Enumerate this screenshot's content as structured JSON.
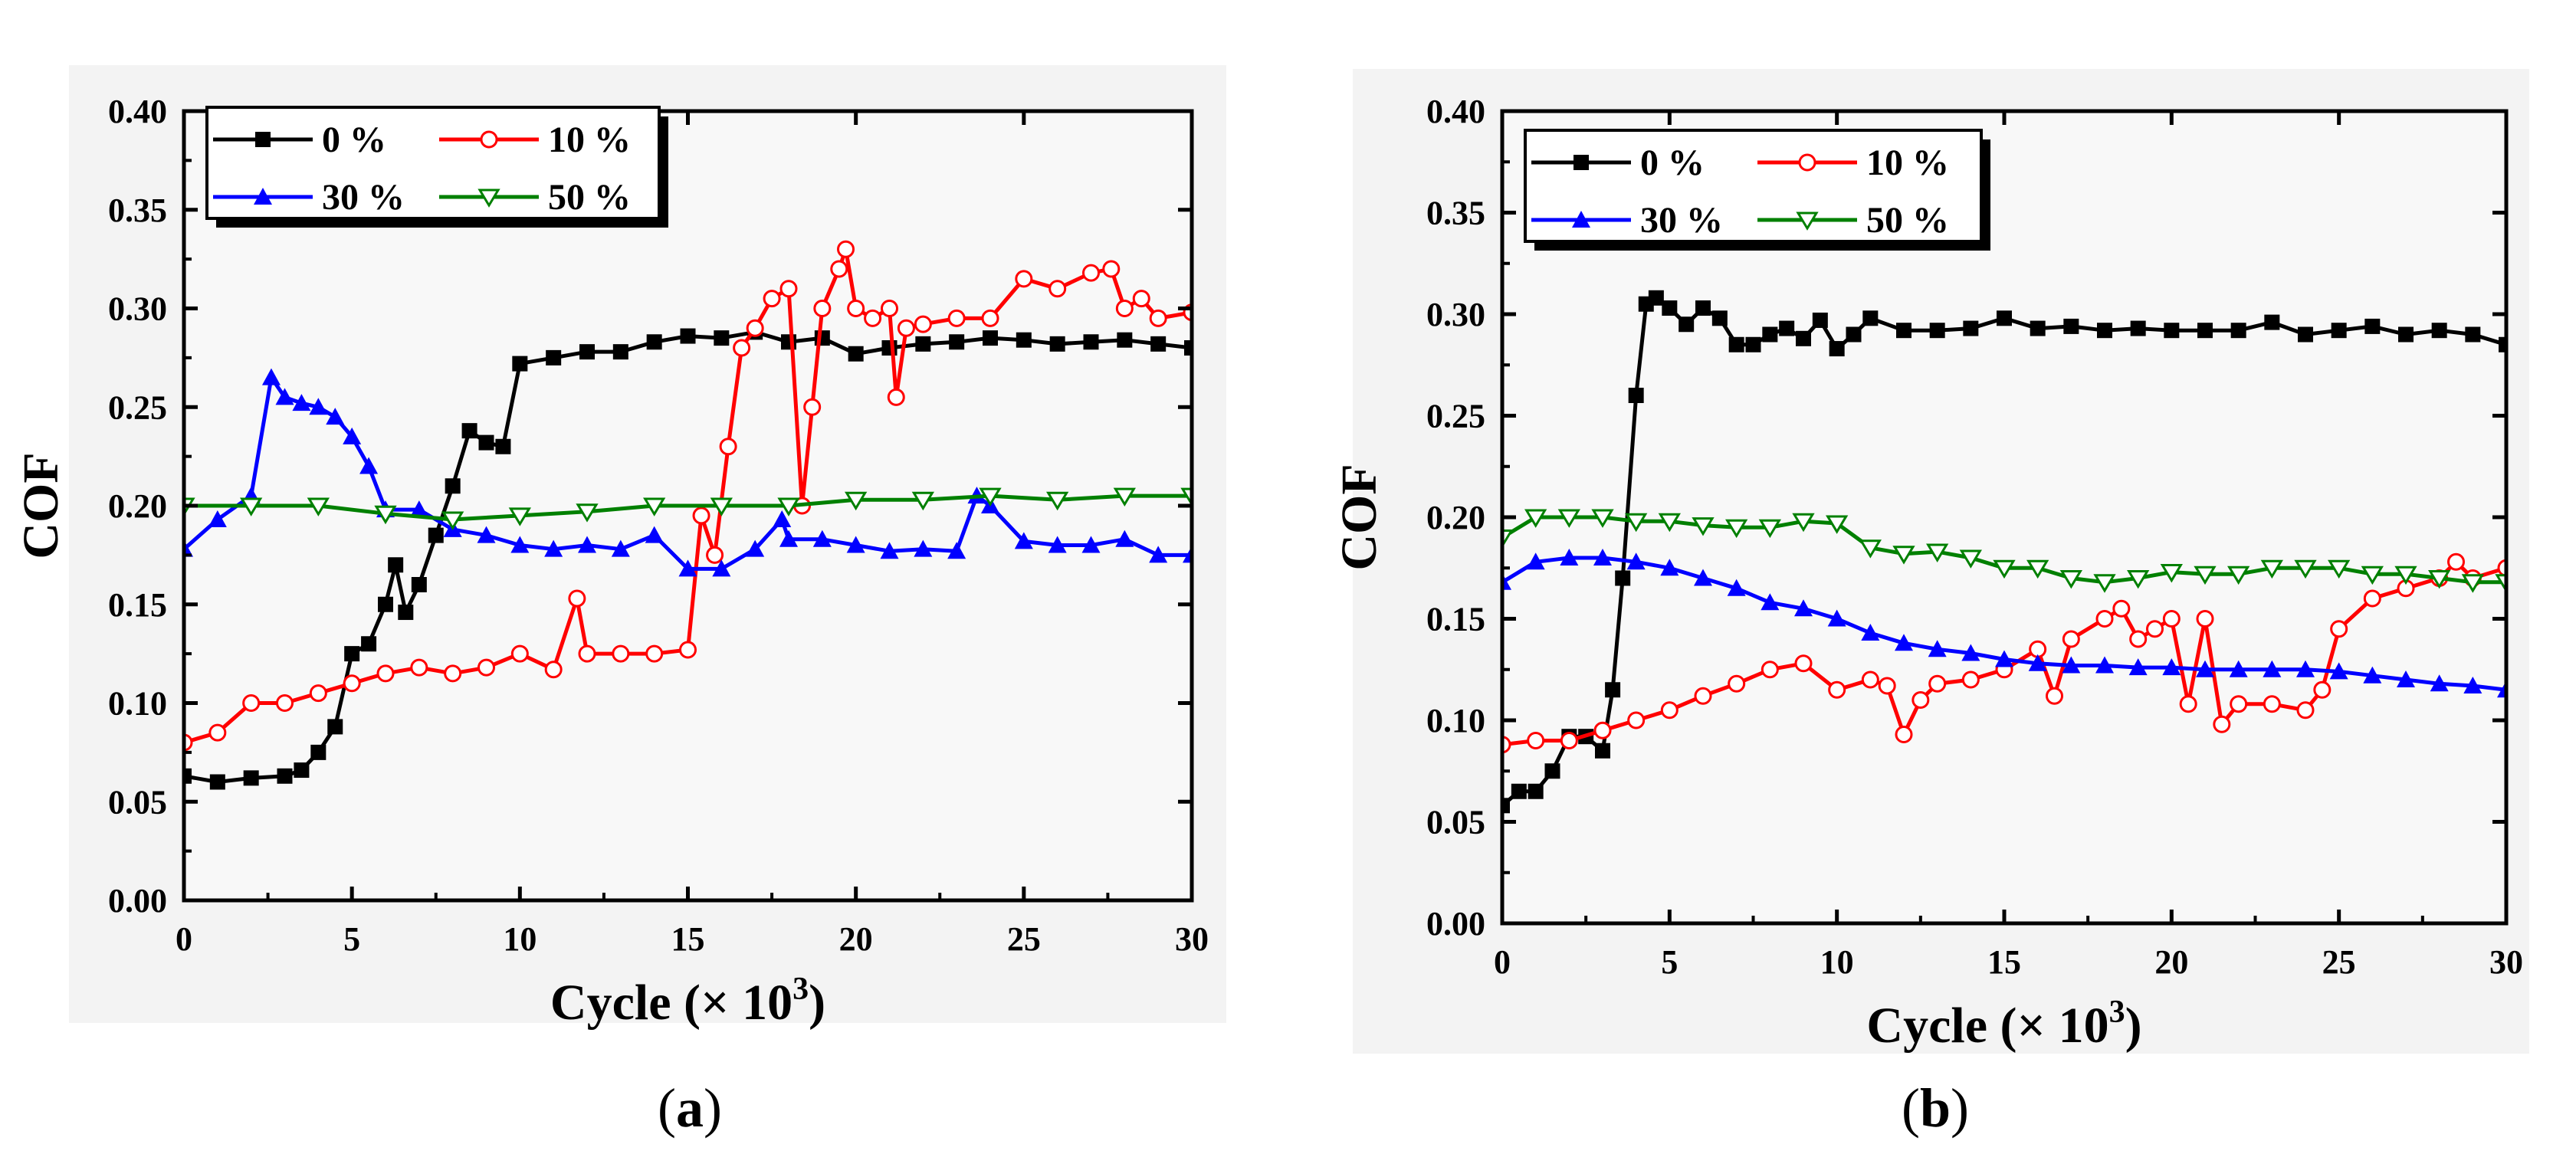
{
  "chart_data": [
    {
      "panel": "(a)",
      "panel_label_letter": "a",
      "type": "line",
      "xlabel": "Cycle (× 10",
      "xlabel_sup": "3",
      "xlabel_close": ")",
      "ylabel": "COF",
      "xlim": [
        0,
        30
      ],
      "ylim": [
        0,
        0.4
      ],
      "xticks": [
        "0",
        "5",
        "10",
        "15",
        "20",
        "25",
        "30"
      ],
      "yticks": [
        "0.00",
        "0.05",
        "0.10",
        "0.15",
        "0.20",
        "0.25",
        "0.30",
        "0.35",
        "0.40"
      ],
      "series": [
        {
          "name": "0 %",
          "color": "#000000",
          "marker": "square",
          "x": [
            0,
            1,
            2,
            3,
            3.5,
            4,
            4.5,
            5,
            5.5,
            6,
            6.3,
            6.6,
            7,
            7.5,
            8,
            8.5,
            9,
            9.5,
            10,
            11,
            12,
            13,
            14,
            15,
            16,
            17,
            18,
            19,
            20,
            21,
            22,
            23,
            24,
            25,
            26,
            27,
            28,
            29,
            30
          ],
          "y": [
            0.063,
            0.06,
            0.062,
            0.063,
            0.066,
            0.075,
            0.088,
            0.125,
            0.13,
            0.15,
            0.17,
            0.146,
            0.16,
            0.185,
            0.21,
            0.238,
            0.232,
            0.23,
            0.272,
            0.275,
            0.278,
            0.278,
            0.283,
            0.286,
            0.285,
            0.288,
            0.283,
            0.285,
            0.277,
            0.28,
            0.282,
            0.283,
            0.285,
            0.284,
            0.282,
            0.283,
            0.284,
            0.282,
            0.28
          ]
        },
        {
          "name": "10 %",
          "color": "#ff0000",
          "marker": "circle-open",
          "x": [
            0,
            1,
            2,
            3,
            4,
            5,
            6,
            7,
            8,
            9,
            10,
            11,
            11.7,
            12,
            13,
            14,
            15,
            15.4,
            15.8,
            16.2,
            16.6,
            17,
            17.5,
            18,
            18.4,
            18.7,
            19,
            19.5,
            19.7,
            20,
            20.5,
            21,
            21.2,
            21.5,
            22,
            23,
            24,
            25,
            26,
            27,
            27.6,
            28,
            28.5,
            29,
            30
          ],
          "y": [
            0.08,
            0.085,
            0.1,
            0.1,
            0.105,
            0.11,
            0.115,
            0.118,
            0.115,
            0.118,
            0.125,
            0.117,
            0.153,
            0.125,
            0.125,
            0.125,
            0.127,
            0.195,
            0.175,
            0.23,
            0.28,
            0.29,
            0.305,
            0.31,
            0.2,
            0.25,
            0.3,
            0.32,
            0.33,
            0.3,
            0.295,
            0.3,
            0.255,
            0.29,
            0.292,
            0.295,
            0.295,
            0.315,
            0.31,
            0.318,
            0.32,
            0.3,
            0.305,
            0.295,
            0.298
          ]
        },
        {
          "name": "30 %",
          "color": "#0000ff",
          "marker": "triangle-up",
          "x": [
            0,
            1,
            2,
            2.6,
            3,
            3.5,
            4,
            4.5,
            5,
            5.5,
            6,
            7,
            8,
            9,
            10,
            11,
            12,
            13,
            14,
            15,
            16,
            17,
            17.8,
            18,
            19,
            20,
            21,
            22,
            23,
            23.6,
            24,
            25,
            26,
            27,
            28,
            29,
            30
          ],
          "y": [
            0.178,
            0.193,
            0.205,
            0.265,
            0.255,
            0.252,
            0.25,
            0.245,
            0.235,
            0.22,
            0.198,
            0.198,
            0.188,
            0.185,
            0.18,
            0.178,
            0.18,
            0.178,
            0.185,
            0.168,
            0.168,
            0.178,
            0.193,
            0.183,
            0.183,
            0.18,
            0.177,
            0.178,
            0.177,
            0.205,
            0.2,
            0.182,
            0.18,
            0.18,
            0.183,
            0.175,
            0.175
          ]
        },
        {
          "name": "50 %",
          "color": "#008000",
          "marker": "triangle-down-open",
          "x": [
            0,
            2,
            4,
            6,
            8,
            10,
            12,
            14,
            16,
            18,
            20,
            22,
            24,
            26,
            28,
            30
          ],
          "y": [
            0.2,
            0.2,
            0.2,
            0.196,
            0.193,
            0.195,
            0.197,
            0.2,
            0.2,
            0.2,
            0.203,
            0.203,
            0.205,
            0.203,
            0.205,
            0.205
          ]
        }
      ]
    },
    {
      "panel": "(b)",
      "panel_label_letter": "b",
      "type": "line",
      "xlabel": "Cycle (× 10",
      "xlabel_sup": "3",
      "xlabel_close": ")",
      "ylabel": "COF",
      "xlim": [
        0,
        30
      ],
      "ylim": [
        0,
        0.4
      ],
      "xticks": [
        "0",
        "5",
        "10",
        "15",
        "20",
        "25",
        "30"
      ],
      "yticks": [
        "0.00",
        "0.05",
        "0.10",
        "0.15",
        "0.20",
        "0.25",
        "0.30",
        "0.35",
        "0.40"
      ],
      "series": [
        {
          "name": "0 %",
          "color": "#000000",
          "marker": "square",
          "x": [
            0,
            0.5,
            1,
            1.5,
            2,
            2.5,
            3,
            3.3,
            3.6,
            4,
            4.3,
            4.6,
            5,
            5.5,
            6,
            6.5,
            7,
            7.5,
            8,
            8.5,
            9,
            9.5,
            10,
            10.5,
            11,
            12,
            13,
            14,
            15,
            16,
            17,
            18,
            19,
            20,
            21,
            22,
            23,
            24,
            25,
            26,
            27,
            28,
            29,
            30
          ],
          "y": [
            0.058,
            0.065,
            0.065,
            0.075,
            0.092,
            0.092,
            0.085,
            0.115,
            0.17,
            0.26,
            0.305,
            0.308,
            0.303,
            0.295,
            0.303,
            0.298,
            0.285,
            0.285,
            0.29,
            0.293,
            0.288,
            0.297,
            0.283,
            0.29,
            0.298,
            0.292,
            0.292,
            0.293,
            0.298,
            0.293,
            0.294,
            0.292,
            0.293,
            0.292,
            0.292,
            0.292,
            0.296,
            0.29,
            0.292,
            0.294,
            0.29,
            0.292,
            0.29,
            0.285
          ]
        },
        {
          "name": "10 %",
          "color": "#ff0000",
          "marker": "circle-open",
          "x": [
            0,
            1,
            2,
            3,
            4,
            5,
            6,
            7,
            8,
            9,
            10,
            11,
            11.5,
            12,
            12.5,
            13,
            14,
            15,
            16,
            16.5,
            17,
            18,
            18.5,
            19,
            19.5,
            20,
            20.5,
            21,
            21.5,
            22,
            23,
            24,
            24.5,
            25,
            26,
            27,
            28,
            28.5,
            29,
            30
          ],
          "y": [
            0.088,
            0.09,
            0.09,
            0.095,
            0.1,
            0.105,
            0.112,
            0.118,
            0.125,
            0.128,
            0.115,
            0.12,
            0.117,
            0.093,
            0.11,
            0.118,
            0.12,
            0.125,
            0.135,
            0.112,
            0.14,
            0.15,
            0.155,
            0.14,
            0.145,
            0.15,
            0.108,
            0.15,
            0.098,
            0.108,
            0.108,
            0.105,
            0.115,
            0.145,
            0.16,
            0.165,
            0.17,
            0.178,
            0.17,
            0.175
          ]
        },
        {
          "name": "30 %",
          "color": "#0000ff",
          "marker": "triangle-up",
          "x": [
            0,
            1,
            2,
            3,
            4,
            5,
            6,
            7,
            8,
            9,
            10,
            11,
            12,
            13,
            14,
            15,
            16,
            17,
            18,
            19,
            20,
            21,
            22,
            23,
            24,
            25,
            26,
            27,
            28,
            29,
            30
          ],
          "y": [
            0.168,
            0.178,
            0.18,
            0.18,
            0.178,
            0.175,
            0.17,
            0.165,
            0.158,
            0.155,
            0.15,
            0.143,
            0.138,
            0.135,
            0.133,
            0.13,
            0.128,
            0.127,
            0.127,
            0.126,
            0.126,
            0.125,
            0.125,
            0.125,
            0.125,
            0.124,
            0.122,
            0.12,
            0.118,
            0.117,
            0.115
          ]
        },
        {
          "name": "50 %",
          "color": "#008000",
          "marker": "triangle-down-open",
          "x": [
            0,
            1,
            2,
            3,
            4,
            5,
            6,
            7,
            8,
            9,
            10,
            11,
            12,
            13,
            14,
            15,
            16,
            17,
            18,
            19,
            20,
            21,
            22,
            23,
            24,
            25,
            26,
            27,
            28,
            29,
            30
          ],
          "y": [
            0.19,
            0.2,
            0.2,
            0.2,
            0.198,
            0.198,
            0.196,
            0.195,
            0.195,
            0.198,
            0.197,
            0.185,
            0.182,
            0.183,
            0.18,
            0.175,
            0.175,
            0.17,
            0.168,
            0.17,
            0.173,
            0.172,
            0.172,
            0.175,
            0.175,
            0.175,
            0.172,
            0.172,
            0.17,
            0.168,
            0.168
          ]
        }
      ]
    }
  ]
}
